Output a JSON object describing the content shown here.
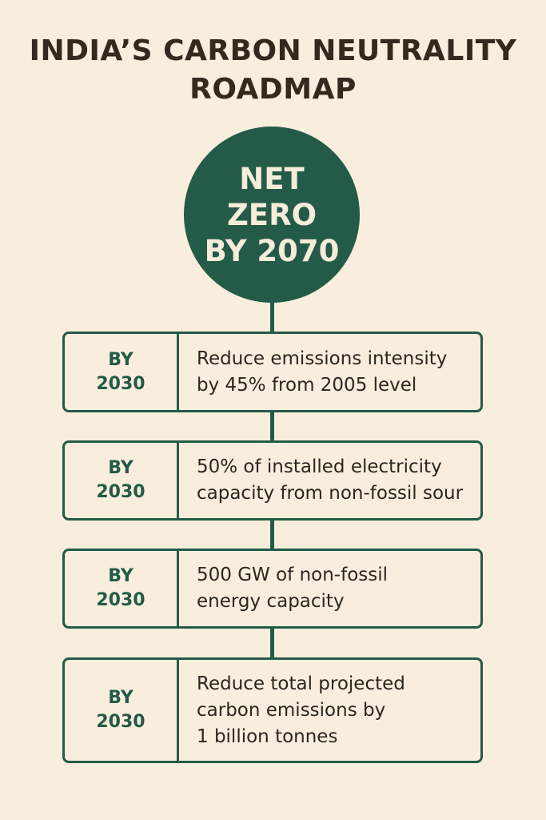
{
  "title": {
    "line1": "INDIA’S CARBON NEUTRALITY",
    "line2": "ROADMAP"
  },
  "goal": {
    "line1": "NET",
    "line2": "ZERO",
    "line3": "BY 2070"
  },
  "milestones": [
    {
      "year_line1": "BY",
      "year_line2": "2030",
      "text": "Reduce emissions intensity\nby 45% from 2005 level"
    },
    {
      "year_line1": "BY",
      "year_line2": "2030",
      "text": "50% of installed electricity\ncapacity from non-fossil sour"
    },
    {
      "year_line1": "BY",
      "year_line2": "2030",
      "text": "500 GW of non-fossil\nenergy capacity"
    },
    {
      "year_line1": "BY",
      "year_line2": "2030",
      "text": "Reduce total projected\ncarbon emissions by\n1 billion tonnes"
    }
  ],
  "colors": {
    "background": "#f9eedd",
    "accent": "#245a48",
    "title_text": "#33291f",
    "body_text": "#2b2621"
  }
}
